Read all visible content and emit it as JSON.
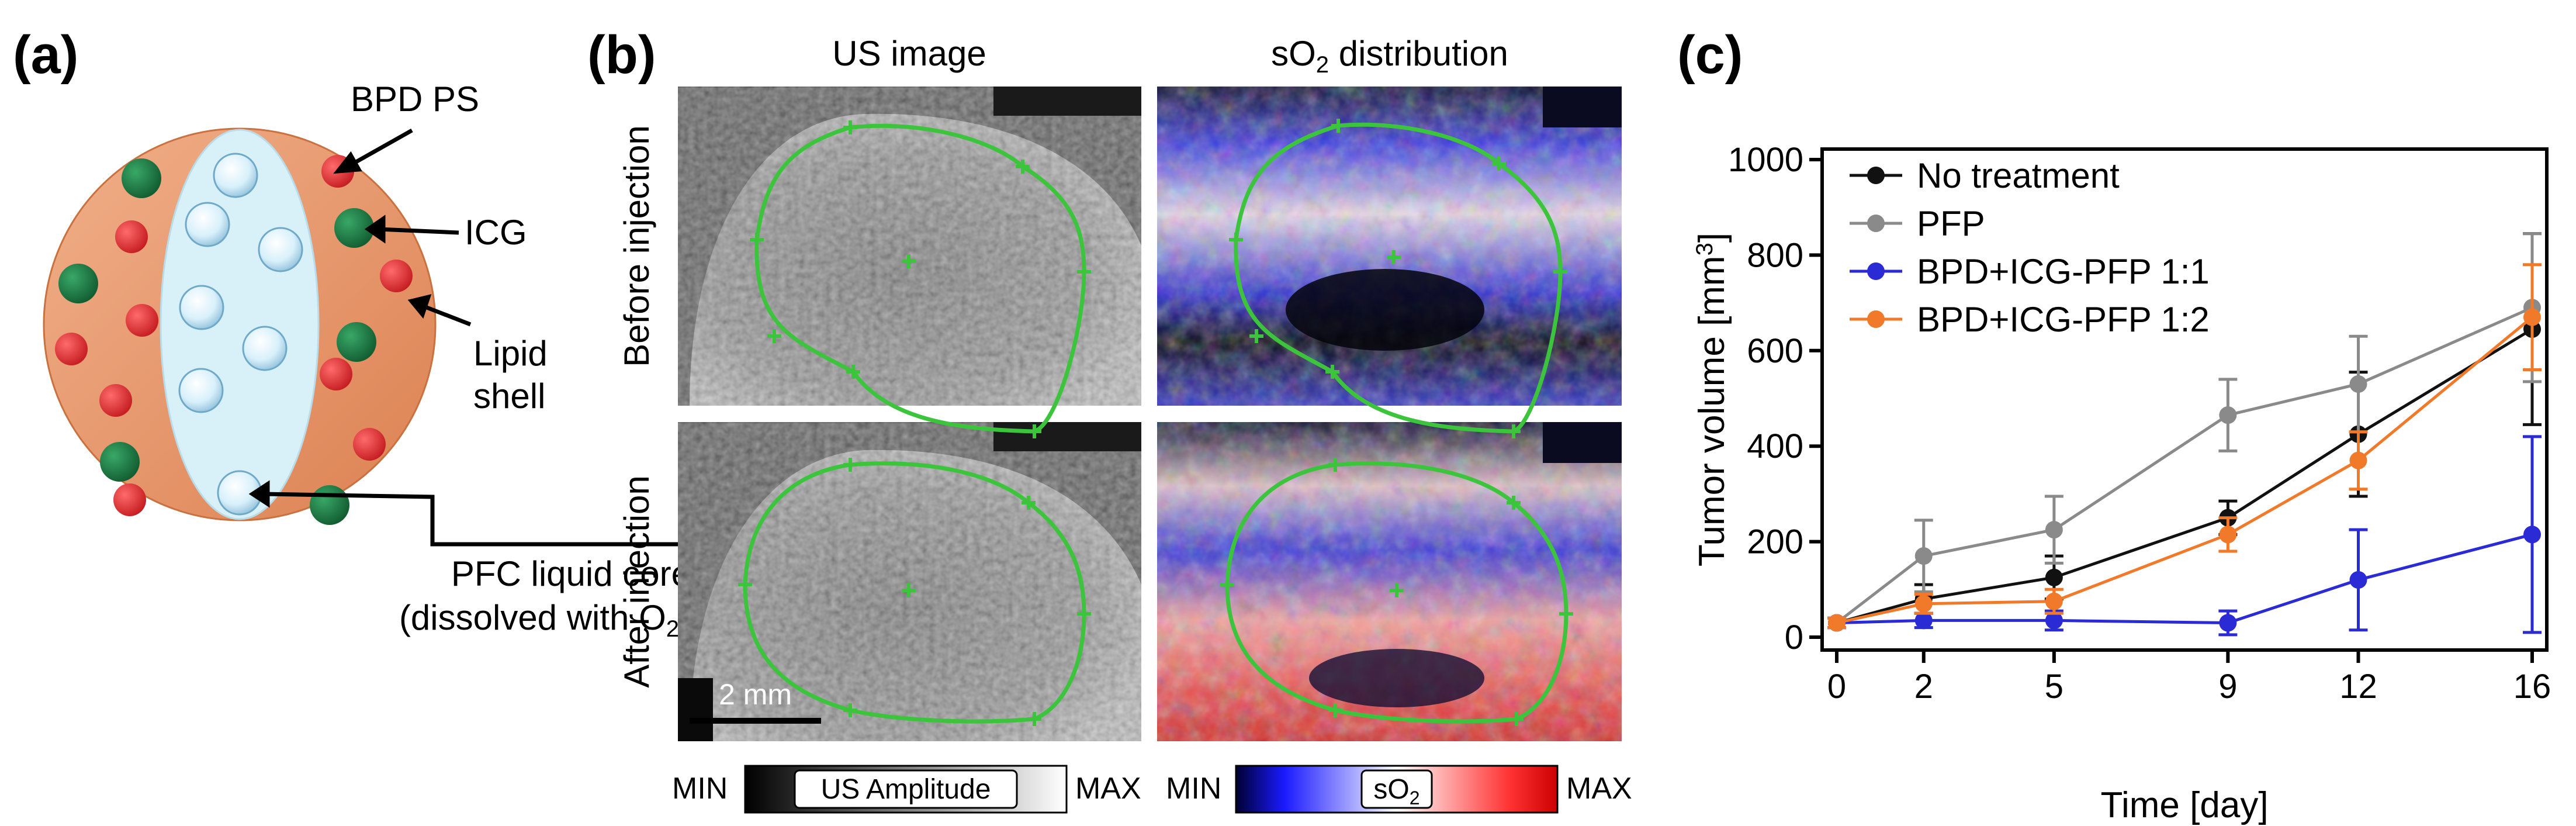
{
  "panel_a": {
    "label": "(a)",
    "bpd_label": "BPD PS",
    "icg_label": "ICG",
    "lipid_label_1": "Lipid",
    "lipid_label_2": "shell",
    "core_label_1": "PFC liquid core",
    "core_label_2": "(dissolved with O",
    "core_label_sub": "2",
    "core_label_end": ")",
    "colors": {
      "shell": "#e8976a",
      "core": "#d6eff6",
      "bpd": "#d9262c",
      "icg": "#1c7a44"
    }
  },
  "panel_b": {
    "label": "(b)",
    "col1_title": "US image",
    "col2_title_main": "sO",
    "col2_title_sub": "2",
    "col2_title_end": " distribution",
    "row1_label": "Before injection",
    "row2_label": "After injection",
    "scale_bar": "2 mm",
    "cb1_min": "MIN",
    "cb1_max": "MAX",
    "cb1_label": "US Amplitude",
    "cb2_min": "MIN",
    "cb2_max": "MAX",
    "cb2_label_main": "sO",
    "cb2_label_sub": "2",
    "contour_color": "#3cc43c"
  },
  "panel_c": {
    "label": "(c)"
  },
  "chart_data": {
    "type": "line",
    "xlabel": "Time [day]",
    "ylabel_main": "Tumor volume [mm",
    "ylabel_sup": "3",
    "ylabel_end": "]",
    "x": [
      0,
      2,
      5,
      9,
      12,
      16
    ],
    "xticks": [
      "0",
      "2",
      "5",
      "9",
      "12",
      "16"
    ],
    "xlim": [
      0,
      16
    ],
    "ylim": [
      0,
      1000
    ],
    "yticks": [
      "0",
      "200",
      "400",
      "600",
      "800",
      "1000"
    ],
    "grid": false,
    "legend": "top-left",
    "series": [
      {
        "name": "No treatment",
        "color": "#111111",
        "values": [
          30,
          80,
          125,
          250,
          425,
          645
        ],
        "errors": [
          10,
          30,
          45,
          35,
          130,
          200
        ]
      },
      {
        "name": "PFP",
        "color": "#8a8a8a",
        "values": [
          30,
          170,
          225,
          465,
          530,
          690
        ],
        "errors": [
          10,
          75,
          70,
          75,
          100,
          155
        ]
      },
      {
        "name": "BPD+ICG-PFP 1:1",
        "color": "#2b2bd6",
        "values": [
          30,
          35,
          35,
          30,
          120,
          215
        ],
        "errors": [
          10,
          15,
          20,
          25,
          105,
          205
        ]
      },
      {
        "name": "BPD+ICG-PFP 1:2",
        "color": "#f07a2a",
        "values": [
          30,
          70,
          75,
          215,
          370,
          670
        ],
        "errors": [
          10,
          20,
          25,
          35,
          60,
          110
        ]
      }
    ]
  }
}
